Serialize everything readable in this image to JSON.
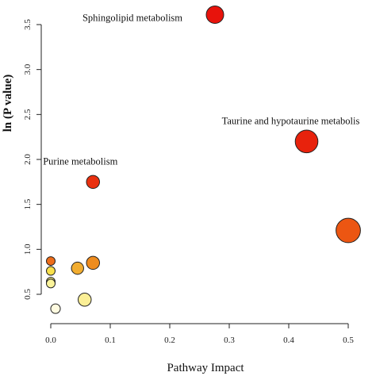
{
  "chart_data": {
    "type": "scatter",
    "title": "",
    "xlabel": "Pathway Impact",
    "ylabel": "ln (P value)",
    "xlim": [
      0.0,
      0.5
    ],
    "ylim": [
      0.3,
      3.6
    ],
    "xticks": [
      "0.0",
      "0.1",
      "0.2",
      "0.3",
      "0.4",
      "0.5"
    ],
    "yticks": [
      "0.5",
      "1.0",
      "1.5",
      "2.0",
      "2.5",
      "3.0",
      "3.5"
    ],
    "grid": false,
    "legend": "none",
    "point_size_encodes": "Pathway Impact",
    "point_color_encodes": "significance (yellow = low, red = high)",
    "points": [
      {
        "x": 0.276,
        "y": 3.61,
        "size": 1.0,
        "color": "#e8130c",
        "label": "Sphingolipid metabolism"
      },
      {
        "x": 0.43,
        "y": 2.2,
        "size": 1.3,
        "color": "#e8220c",
        "label": "Taurine and hypotaurine metabolis"
      },
      {
        "x": 0.071,
        "y": 1.75,
        "size": 0.75,
        "color": "#e9300f",
        "label": "Purine metabolism"
      },
      {
        "x": 0.5,
        "y": 1.21,
        "size": 1.4,
        "color": "#ec5612",
        "label": ""
      },
      {
        "x": 0.071,
        "y": 0.85,
        "size": 0.75,
        "color": "#ee8c1e",
        "label": ""
      },
      {
        "x": 0.045,
        "y": 0.79,
        "size": 0.7,
        "color": "#f2ad30",
        "label": ""
      },
      {
        "x": 0.0,
        "y": 0.87,
        "size": 0.5,
        "color": "#ee6d1a",
        "label": ""
      },
      {
        "x": 0.0,
        "y": 0.76,
        "size": 0.5,
        "color": "#f8e04c",
        "label": ""
      },
      {
        "x": 0.0,
        "y": 0.64,
        "size": 0.5,
        "color": "#faf080",
        "label": ""
      },
      {
        "x": 0.0,
        "y": 0.62,
        "size": 0.5,
        "color": "#fbf49b",
        "label": ""
      },
      {
        "x": 0.057,
        "y": 0.44,
        "size": 0.75,
        "color": "#fbef96",
        "label": ""
      },
      {
        "x": 0.008,
        "y": 0.34,
        "size": 0.55,
        "color": "#fffbe0",
        "label": ""
      }
    ]
  }
}
